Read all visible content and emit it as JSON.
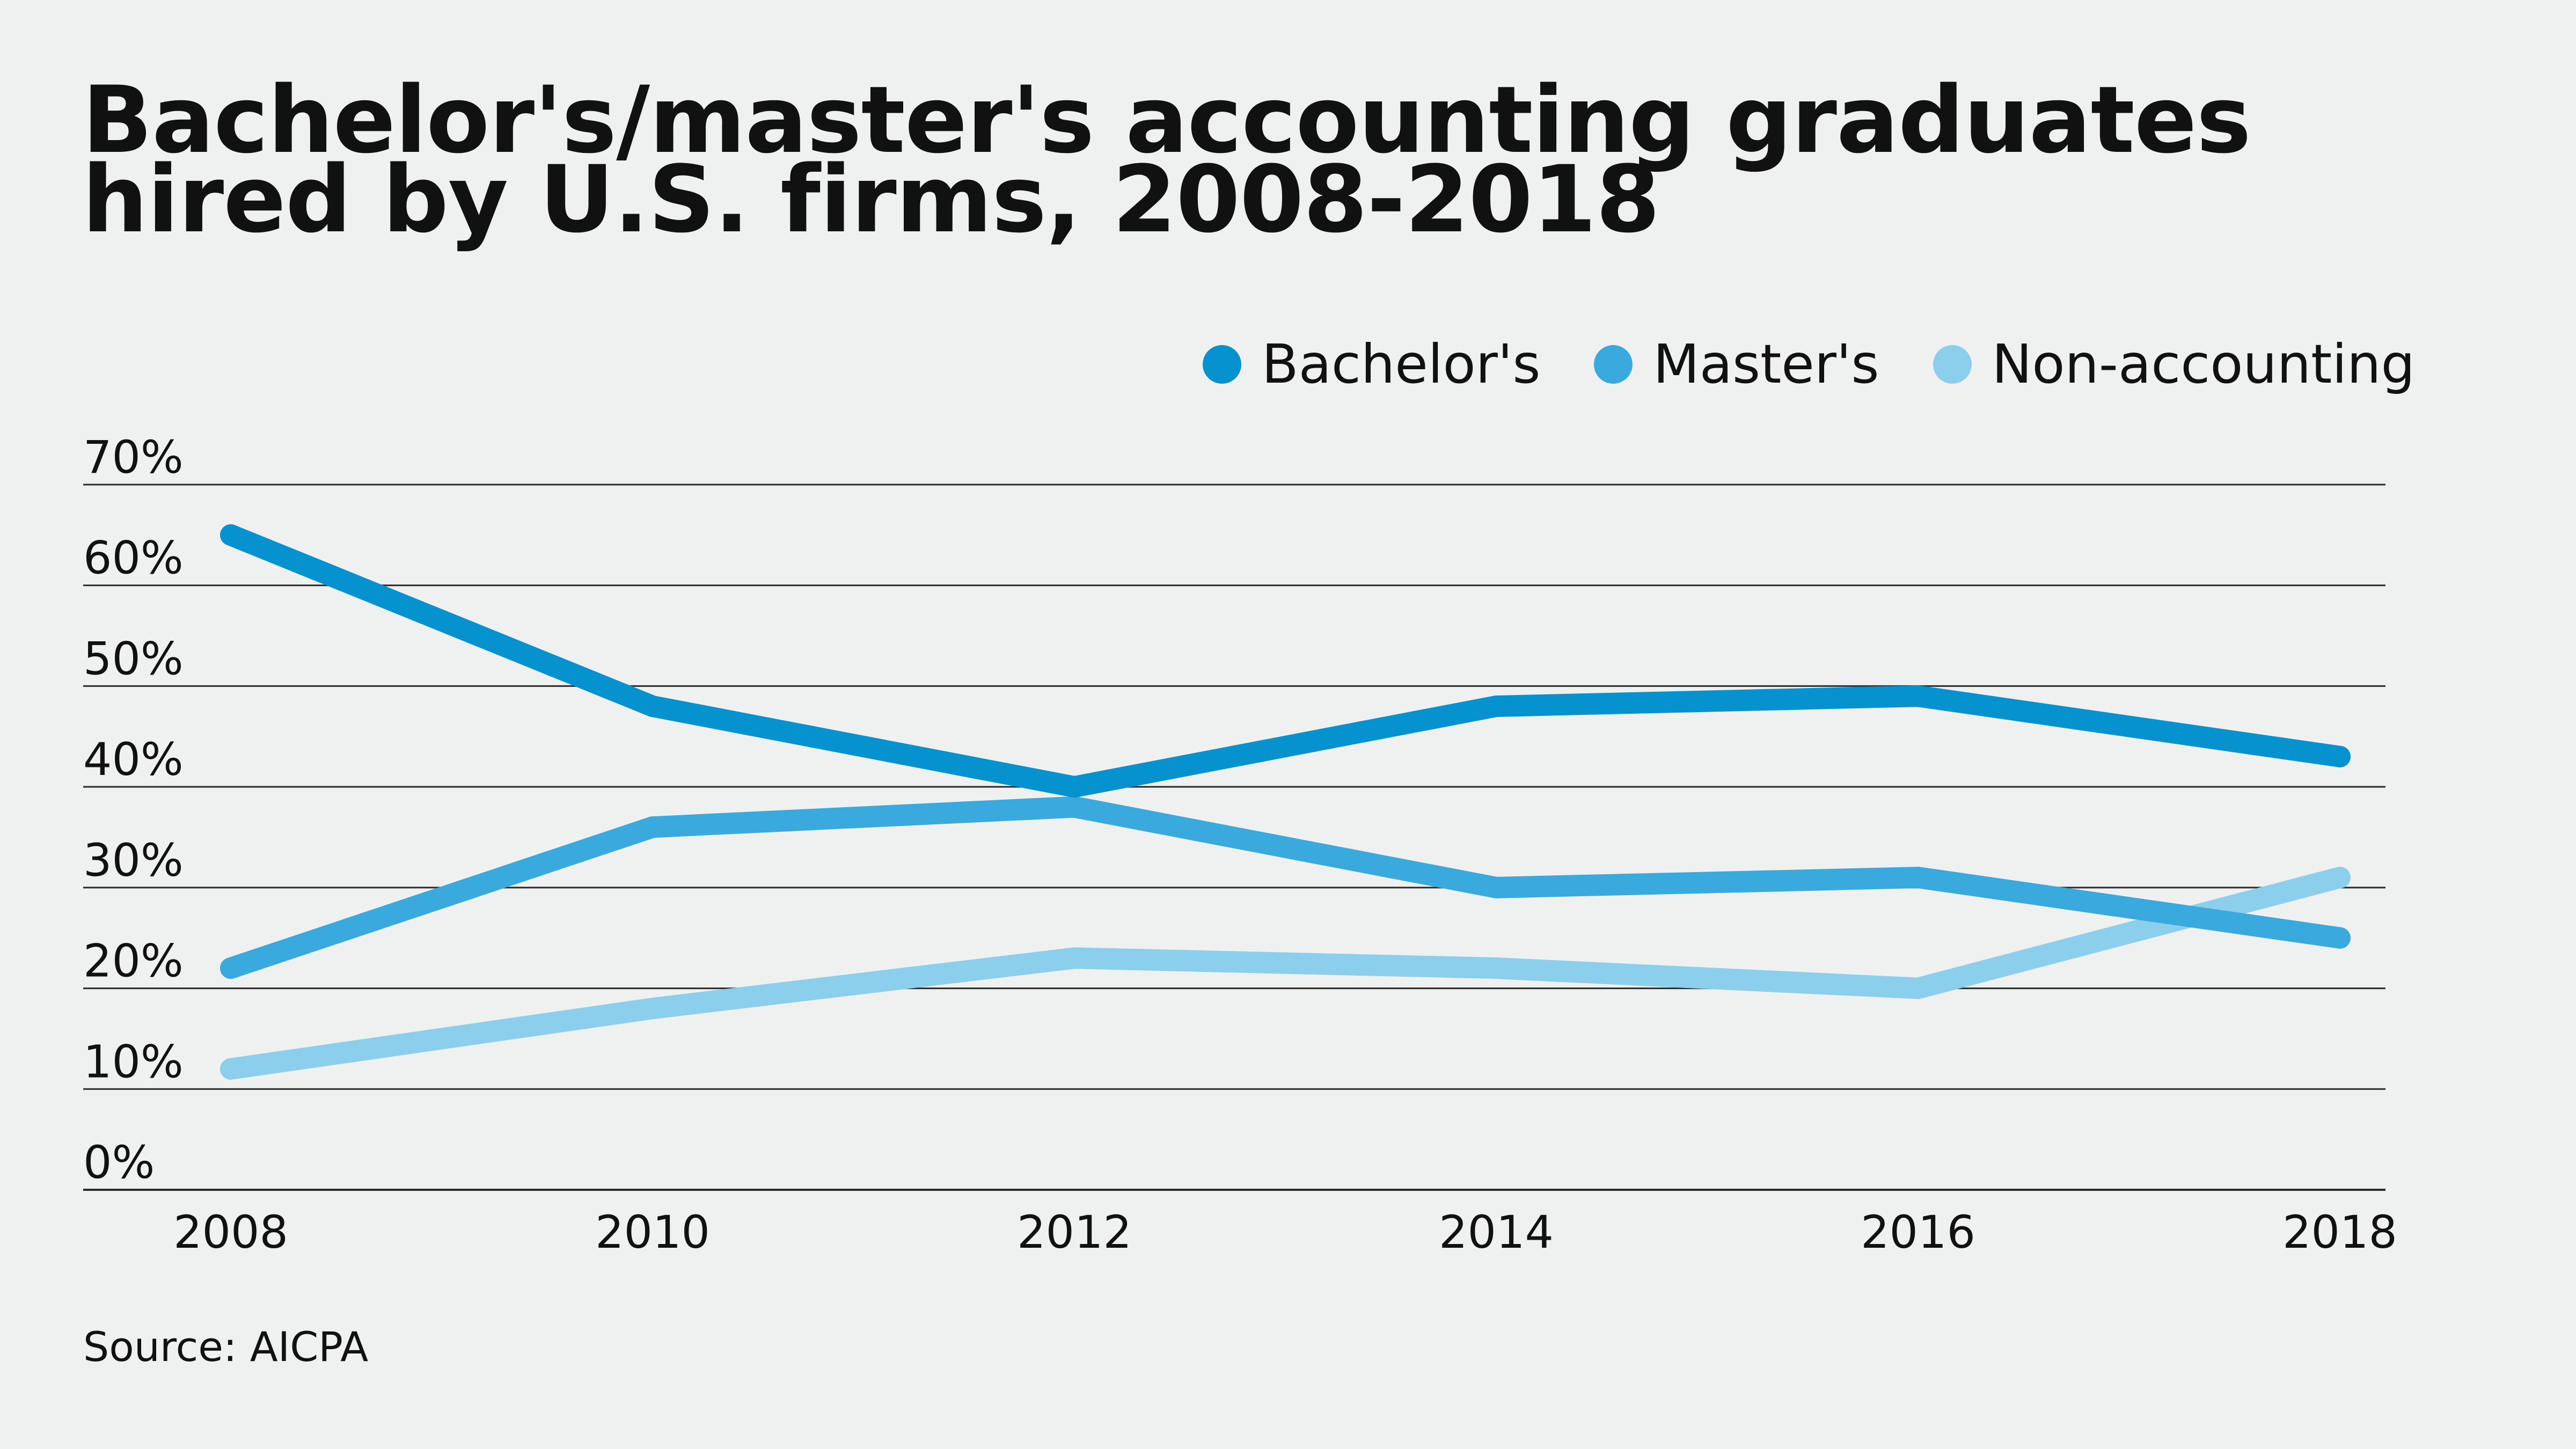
{
  "chart_data": {
    "type": "line",
    "title": "Bachelor's/master's accounting graduates hired by U.S. firms, 2008-2018",
    "xlabel": "",
    "ylabel": "",
    "categories": [
      "2008",
      "2010",
      "2012",
      "2014",
      "2016",
      "2018"
    ],
    "ylim": [
      0,
      70
    ],
    "yticks": [
      0,
      10,
      20,
      30,
      40,
      50,
      60,
      70
    ],
    "ytick_labels": [
      "0%",
      "10%",
      "20%",
      "30%",
      "40%",
      "50%",
      "60%",
      "70%"
    ],
    "grid": true,
    "legend_position": "top-right",
    "series": [
      {
        "name": "Bachelor's",
        "color": "#0691cf",
        "values": [
          65,
          48,
          40,
          48,
          49,
          43
        ]
      },
      {
        "name": "Master's",
        "color": "#3aaade",
        "values": [
          22,
          36,
          38,
          30,
          31,
          25
        ]
      },
      {
        "name": "Non-accounting",
        "color": "#8ccfec",
        "values": [
          12,
          18,
          23,
          22,
          20,
          31
        ]
      }
    ],
    "source": "Source: AICPA"
  }
}
